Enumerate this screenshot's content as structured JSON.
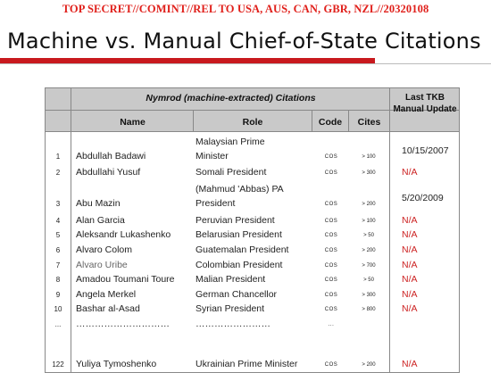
{
  "banner": "TOP SECRET//COMINT//REL TO USA, AUS, CAN, GBR, NZL//20320108",
  "title": "Machine vs. Manual Chief-of-State Citations",
  "table": {
    "group_header": "Nymrod (machine-extracted)  Citations",
    "last_header": "Last TKB Manual Update",
    "columns": {
      "name": "Name",
      "role": "Role",
      "code": "Code",
      "cites": "Cites"
    },
    "rows": [
      {
        "num": "1",
        "name": "Abdullah Badawi",
        "role1": "Malaysian Prime",
        "role2": "Minister",
        "code": "COS",
        "cites": "> 100",
        "update": "10/15/2007"
      },
      {
        "num": "2",
        "name": "Abdullahi Yusuf",
        "role1": "Somali President",
        "role2": "",
        "code": "COS",
        "cites": "> 300",
        "update": "N/A"
      },
      {
        "num": "3",
        "name": "Abu Mazin",
        "role1": "(Mahmud 'Abbas) PA",
        "role2": "President",
        "code": "COS",
        "cites": "> 200",
        "update": "5/20/2009"
      },
      {
        "num": "4",
        "name": "Alan Garcia",
        "role1": "Peruvian President",
        "role2": "",
        "code": "COS",
        "cites": "> 100",
        "update": "N/A"
      },
      {
        "num": "5",
        "name": "Aleksandr Lukashenko",
        "role1": "Belarusian President",
        "role2": "",
        "code": "COS",
        "cites": "> 50",
        "update": "N/A"
      },
      {
        "num": "6",
        "name": "Alvaro Colom",
        "role1": "Guatemalan President",
        "role2": "",
        "code": "COS",
        "cites": "> 200",
        "update": "N/A"
      },
      {
        "num": "7",
        "name": "Alvaro Uribe",
        "role1": "Colombian President",
        "role2": "",
        "code": "COS",
        "cites": "> 700",
        "update": "N/A"
      },
      {
        "num": "8",
        "name": "Amadou Toumani Toure",
        "role1": "Malian President",
        "role2": "",
        "code": "COS",
        "cites": "> 50",
        "update": "N/A"
      },
      {
        "num": "9",
        "name": "Angela Merkel",
        "role1": "German Chancellor",
        "role2": "",
        "code": "COS",
        "cites": "> 300",
        "update": "N/A"
      },
      {
        "num": "10",
        "name": "Bashar al-Asad",
        "role1": "Syrian President",
        "role2": "",
        "code": "COS",
        "cites": "> 800",
        "update": "N/A"
      },
      {
        "num": "...",
        "name": "…………………………",
        "role1": "……………………",
        "role2": "",
        "code": "...",
        "cites": "",
        "update": ""
      },
      {
        "num": "122",
        "name": "Yuliya Tymoshenko",
        "role1": "Ukrainian Prime Minister",
        "role2": "",
        "code": "COS",
        "cites": "> 200",
        "update": "N/A"
      }
    ]
  }
}
